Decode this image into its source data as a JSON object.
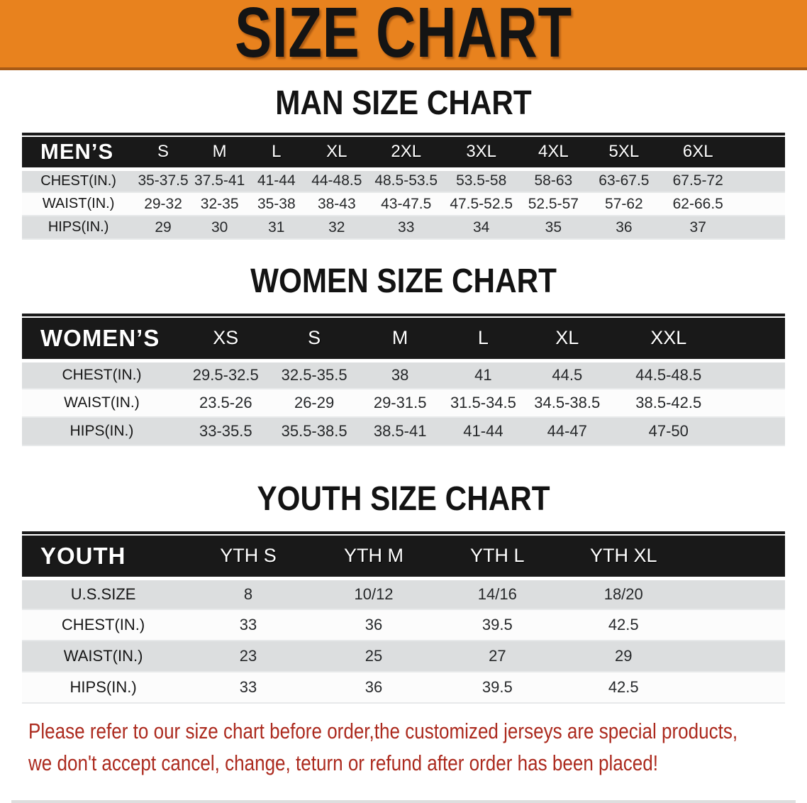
{
  "banner": {
    "title": "SIZE CHART",
    "bg_color": "#E8821E"
  },
  "sections": [
    {
      "heading": "MAN SIZE CHART",
      "table": {
        "group_label": "MEN’S",
        "sizes": [
          "S",
          "M",
          "L",
          "XL",
          "2XL",
          "3XL",
          "4XL",
          "5XL",
          "6XL"
        ],
        "rows": [
          {
            "label": "CHEST(IN.)",
            "values": [
              "35-37.5",
              "37.5-41",
              "41-44",
              "44-48.5",
              "48.5-53.5",
              "53.5-58",
              "58-63",
              "63-67.5",
              "67.5-72"
            ]
          },
          {
            "label": "WAIST(IN.)",
            "values": [
              "29-32",
              "32-35",
              "35-38",
              "38-43",
              "43-47.5",
              "47.5-52.5",
              "52.5-57",
              "57-62",
              "62-66.5"
            ]
          },
          {
            "label": "HIPS(IN.)",
            "values": [
              "29",
              "30",
              "31",
              "32",
              "33",
              "34",
              "35",
              "36",
              "37"
            ]
          }
        ]
      }
    },
    {
      "heading": "WOMEN SIZE CHART",
      "table": {
        "group_label": "WOMEN’S",
        "sizes": [
          "XS",
          "S",
          "M",
          "L",
          "XL",
          "XXL"
        ],
        "rows": [
          {
            "label": "CHEST(IN.)",
            "values": [
              "29.5-32.5",
              "32.5-35.5",
              "38",
              "41",
              "44.5",
              "44.5-48.5"
            ]
          },
          {
            "label": "WAIST(IN.)",
            "values": [
              "23.5-26",
              "26-29",
              "29-31.5",
              "31.5-34.5",
              "34.5-38.5",
              "38.5-42.5"
            ]
          },
          {
            "label": "HIPS(IN.)",
            "values": [
              "33-35.5",
              "35.5-38.5",
              "38.5-41",
              "41-44",
              "44-47",
              "47-50"
            ]
          }
        ]
      }
    },
    {
      "heading": "YOUTH SIZE CHART",
      "table": {
        "group_label": "YOUTH",
        "sizes": [
          "YTH S",
          "YTH M",
          "YTH L",
          "YTH XL"
        ],
        "rows": [
          {
            "label": "U.S.SIZE",
            "values": [
              "8",
              "10/12",
              "14/16",
              "18/20"
            ]
          },
          {
            "label": "CHEST(IN.)",
            "values": [
              "33",
              "36",
              "39.5",
              "42.5"
            ]
          },
          {
            "label": "WAIST(IN.)",
            "values": [
              "23",
              "25",
              "27",
              "29"
            ]
          },
          {
            "label": "HIPS(IN.)",
            "values": [
              "33",
              "36",
              "39.5",
              "42.5"
            ]
          }
        ]
      }
    }
  ],
  "disclaimer": {
    "lines": [
      "Please refer to our size chart before order,the customized jerseys are special products,",
      "we don't accept cancel, change, teturn or refund after order has been placed!"
    ],
    "color": "#AC2A1E"
  }
}
